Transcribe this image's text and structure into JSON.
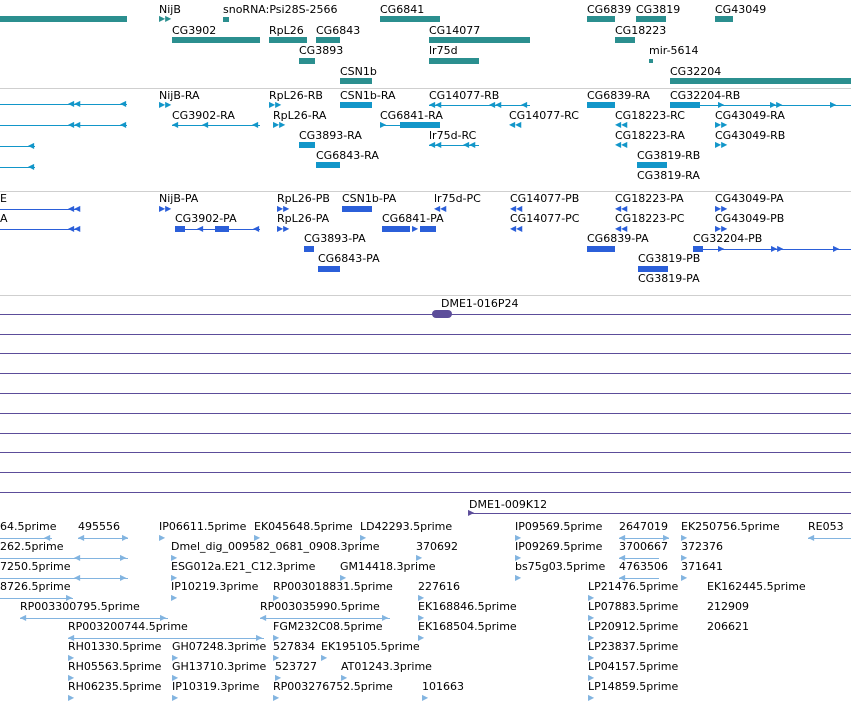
{
  "viewer": {
    "title": ""
  },
  "tracks": {
    "genes": {
      "labels": [
        "NijB",
        "snoRNA:Psi28S-2566",
        "CG6841",
        "CG6839",
        "CG3819",
        "CG43049",
        "CG3902",
        "RpL26",
        "CG6843",
        "CG14077",
        "CG18223",
        "CG3893",
        "lr75d",
        "mir-5614",
        "CSN1b",
        "CG32204"
      ]
    },
    "transcripts": {
      "labels": [
        "NijB-RA",
        "RpL26-RB",
        "CSN1b-RA",
        "CG14077-RB",
        "CG6839-RA",
        "CG32204-RB",
        "CG3902-RA",
        "RpL26-RA",
        "CG6841-RA",
        "CG14077-RC",
        "CG18223-RC",
        "CG43049-RA",
        "CG3893-RA",
        "lr75d-RC",
        "CG18223-RA",
        "CG43049-RB",
        "CG6843-RA",
        "CG3819-RB",
        "CG3819-RA"
      ]
    },
    "proteins": {
      "labels": [
        "E",
        "NijB-PA",
        "RpL26-PB",
        "CSN1b-PA",
        "lr75d-PC",
        "CG14077-PB",
        "CG18223-PA",
        "CG43049-PA",
        "A",
        "CG3902-PA",
        "RpL26-PA",
        "CG6841-PA",
        "CG14077-PC",
        "CG18223-PC",
        "CG43049-PB",
        "CG3893-PA",
        "CG6839-PA",
        "CG32204-PB",
        "CG6843-PA",
        "CG3819-PB",
        "CG3819-PA"
      ]
    },
    "bacs": {
      "labels": [
        "DME1-016P24",
        "DME1-009K12"
      ]
    },
    "ests": {
      "labels": [
        "64.5prime",
        "495556",
        "IP06611.5prime",
        "EK045648.5prime",
        "LD42293.5prime",
        "IP09569.5prime",
        "2647019",
        "EK250756.5prime",
        "RE053",
        "262.5prime",
        "Dmel_dig_009582_0681_0908.3prime",
        "370692",
        "IP09269.5prime",
        "3700667",
        "372376",
        "7250.5prime",
        "ESG012a.E21_C12.3prime",
        "GM14418.3prime",
        "bs75g03.5prime",
        "4763506",
        "371641",
        "8726.5prime",
        "IP10219.3prime",
        "RP003018831.5prime",
        "227616",
        "LP21476.5prime",
        "EK162445.5prime",
        "RP003300795.5prime",
        "RP003035990.5prime",
        "EK168846.5prime",
        "LP07883.5prime",
        "212909",
        "RP003200744.5prime",
        "FGM232C08.5prime",
        "EK168504.5prime",
        "LP20912.5prime",
        "206621",
        "RH01330.5prime",
        "GH07248.3prime",
        "527834",
        "EK195105.5prime",
        "LP23837.5prime",
        "RH05563.5prime",
        "GH13710.3prime",
        "523727",
        "AT01243.3prime",
        "LP04157.5prime",
        "RH06235.5prime",
        "IP10319.3prime",
        "RP003276752.5prime",
        "101663",
        "LP14859.5prime"
      ]
    }
  },
  "colors": {
    "gene": "#2b8f8f",
    "transcript": "#1296c9",
    "protein": "#2b5fd9",
    "bac": "#5c4d9a",
    "est": "#82b4e0"
  }
}
